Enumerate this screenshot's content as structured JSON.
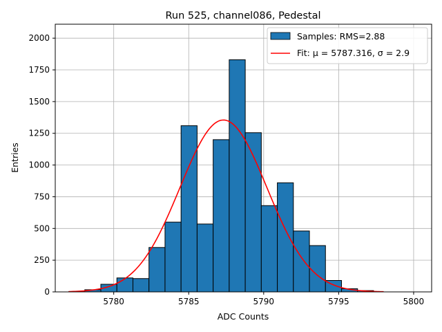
{
  "chart_data": {
    "type": "bar",
    "title": "Run 525, channel086, Pedestal",
    "xlabel": "ADC Counts",
    "ylabel": "Entries",
    "xlim": [
      5776.1,
      5801.2
    ],
    "ylim": [
      0,
      2110
    ],
    "xticks": [
      5780,
      5785,
      5790,
      5795,
      5800
    ],
    "yticks": [
      0,
      250,
      500,
      750,
      1000,
      1250,
      1500,
      1750,
      2000
    ],
    "grid": true,
    "legend_position": "top-right",
    "colors": {
      "bars": "#1f77b4",
      "bar_edge": "#000000",
      "fit": "#ff0000",
      "grid": "#b0b0b0"
    },
    "series": [
      {
        "name": "Samples: RMS=2.88",
        "kind": "histogram",
        "bin_edges": [
          5777.0,
          5778.07,
          5779.14,
          5780.21,
          5781.28,
          5782.35,
          5783.42,
          5784.49,
          5785.56,
          5786.63,
          5787.7,
          5788.77,
          5789.84,
          5790.91,
          5791.98,
          5793.05,
          5794.12,
          5795.19,
          5796.26,
          5797.33
        ],
        "values": [
          2,
          17,
          60,
          110,
          105,
          350,
          550,
          1310,
          535,
          1200,
          1830,
          1255,
          680,
          860,
          480,
          365,
          90,
          25,
          10
        ]
      },
      {
        "name": "Fit: μ = 5787.316, σ = 2.9",
        "kind": "gaussian",
        "mu": 5787.316,
        "sigma": 2.9,
        "amplitude": 1355,
        "x_range": [
          5777.0,
          5798.0
        ]
      }
    ]
  }
}
